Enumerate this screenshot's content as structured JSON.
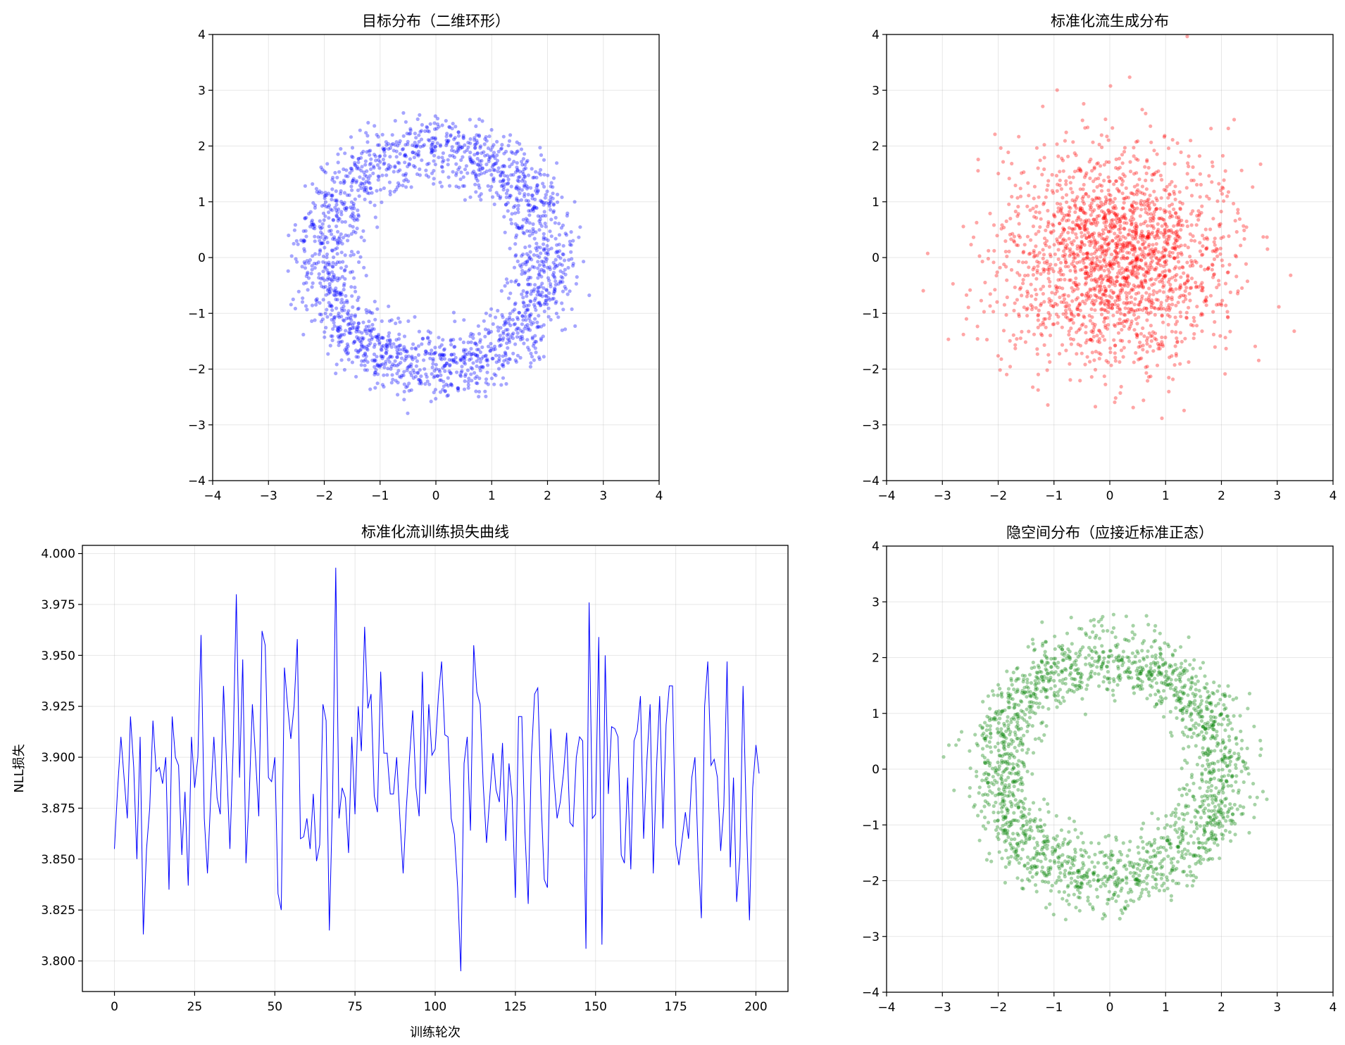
{
  "chart_data": [
    {
      "id": "target",
      "type": "scatter",
      "title": "目标分布（二维环形）",
      "xlabel": "",
      "ylabel": "",
      "xlim": [
        -4,
        4
      ],
      "ylim": [
        -4,
        4
      ],
      "xticks": [
        -4,
        -3,
        -2,
        -1,
        0,
        1,
        2,
        3,
        4
      ],
      "yticks": [
        -4,
        -3,
        -2,
        -1,
        0,
        1,
        2,
        3,
        4
      ],
      "grid": true,
      "color": "#0000ff",
      "opacity": 0.35,
      "distribution": {
        "kind": "ring",
        "n_points": 2000,
        "mean_radius": 2.0,
        "radius_std": 0.3
      }
    },
    {
      "id": "flow",
      "type": "scatter",
      "title": "标准化流生成分布",
      "xlabel": "",
      "ylabel": "",
      "xlim": [
        -4,
        4
      ],
      "ylim": [
        -4,
        4
      ],
      "xticks": [
        -4,
        -3,
        -2,
        -1,
        0,
        1,
        2,
        3,
        4
      ],
      "yticks": [
        -4,
        -3,
        -2,
        -1,
        0,
        1,
        2,
        3,
        4
      ],
      "grid": true,
      "color": "#ff0000",
      "opacity": 0.35,
      "distribution": {
        "kind": "gaussian",
        "n_points": 2000,
        "mean": [
          0.1,
          0.0
        ],
        "std": [
          1.0,
          0.95
        ]
      }
    },
    {
      "id": "loss",
      "type": "line",
      "title": "标准化流训练损失曲线",
      "xlabel": "训练轮次",
      "ylabel": "NLL损失",
      "xlim": [
        -10,
        210
      ],
      "ylim": [
        3.785,
        4.004
      ],
      "xticks": [
        0,
        25,
        50,
        75,
        100,
        125,
        150,
        175,
        200
      ],
      "yticks": [
        3.8,
        3.825,
        3.85,
        3.875,
        3.9,
        3.925,
        3.95,
        3.975,
        4.0
      ],
      "ytick_decimals": 3,
      "grid": true,
      "color": "#0000ff",
      "series": [
        {
          "x_start": 0,
          "x_step": 1,
          "values": [
            3.855,
            3.885,
            3.91,
            3.89,
            3.87,
            3.92,
            3.895,
            3.85,
            3.91,
            3.813,
            3.855,
            3.875,
            3.918,
            3.893,
            3.895,
            3.887,
            3.9,
            3.835,
            3.92,
            3.9,
            3.896,
            3.852,
            3.883,
            3.837,
            3.91,
            3.885,
            3.9,
            3.96,
            3.87,
            3.843,
            3.88,
            3.91,
            3.88,
            3.872,
            3.935,
            3.895,
            3.855,
            3.905,
            3.98,
            3.89,
            3.948,
            3.848,
            3.88,
            3.926,
            3.9,
            3.871,
            3.962,
            3.955,
            3.89,
            3.888,
            3.9,
            3.833,
            3.825,
            3.944,
            3.925,
            3.909,
            3.925,
            3.958,
            3.86,
            3.861,
            3.87,
            3.855,
            3.882,
            3.849,
            3.857,
            3.926,
            3.918,
            3.815,
            3.88,
            3.993,
            3.87,
            3.885,
            3.88,
            3.853,
            3.91,
            3.872,
            3.925,
            3.903,
            3.964,
            3.924,
            3.931,
            3.881,
            3.873,
            3.942,
            3.902,
            3.902,
            3.882,
            3.882,
            3.9,
            3.87,
            3.843,
            3.875,
            3.9,
            3.923,
            3.885,
            3.871,
            3.942,
            3.882,
            3.926,
            3.901,
            3.904,
            3.93,
            3.947,
            3.911,
            3.91,
            3.87,
            3.862,
            3.836,
            3.795,
            3.897,
            3.91,
            3.864,
            3.955,
            3.932,
            3.926,
            3.886,
            3.858,
            3.88,
            3.902,
            3.884,
            3.878,
            3.907,
            3.859,
            3.897,
            3.88,
            3.831,
            3.92,
            3.92,
            3.863,
            3.828,
            3.9,
            3.931,
            3.934,
            3.88,
            3.84,
            3.836,
            3.914,
            3.89,
            3.87,
            3.878,
            3.892,
            3.912,
            3.868,
            3.866,
            3.9,
            3.91,
            3.908,
            3.806,
            3.976,
            3.87,
            3.872,
            3.959,
            3.808,
            3.95,
            3.882,
            3.915,
            3.914,
            3.91,
            3.852,
            3.848,
            3.89,
            3.845,
            3.908,
            3.913,
            3.93,
            3.86,
            3.898,
            3.926,
            3.843,
            3.895,
            3.93,
            3.865,
            3.916,
            3.935,
            3.935,
            3.857,
            3.847,
            3.86,
            3.873,
            3.86,
            3.89,
            3.9,
            3.852,
            3.821,
            3.925,
            3.947,
            3.896,
            3.899,
            3.89,
            3.854,
            3.876,
            3.947,
            3.846,
            3.89,
            3.829,
            3.851,
            3.935,
            3.871,
            3.82,
            3.885,
            3.906,
            3.892
          ]
        }
      ]
    },
    {
      "id": "latent",
      "type": "scatter",
      "title": "隐空间分布（应接近标准正态）",
      "xlabel": "",
      "ylabel": "",
      "xlim": [
        -4,
        4
      ],
      "ylim": [
        -4,
        4
      ],
      "xticks": [
        -4,
        -3,
        -2,
        -1,
        0,
        1,
        2,
        3,
        4
      ],
      "yticks": [
        -4,
        -3,
        -2,
        -1,
        0,
        1,
        2,
        3,
        4
      ],
      "grid": true,
      "color": "#008000",
      "opacity": 0.35,
      "distribution": {
        "kind": "ring",
        "n_points": 2000,
        "mean_radius": 2.0,
        "radius_std": 0.3
      }
    }
  ]
}
